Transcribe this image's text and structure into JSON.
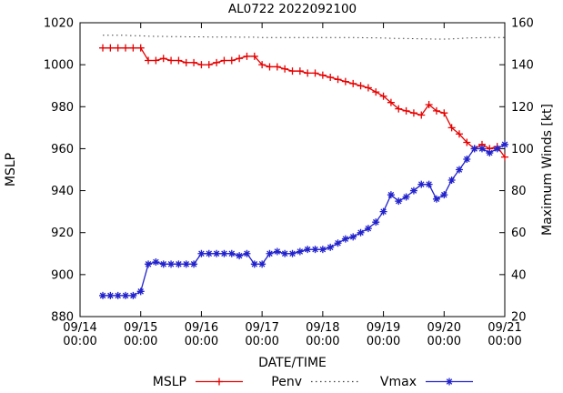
{
  "title": "AL0722 2022092100",
  "axes": {
    "left_label": "MSLP",
    "right_label": "Maximum Winds [kt]",
    "x_label": "DATE/TIME",
    "left_ticks": [
      880,
      900,
      920,
      940,
      960,
      980,
      1000,
      1020
    ],
    "right_ticks": [
      20,
      40,
      60,
      80,
      100,
      120,
      140,
      160
    ],
    "x_ticks": [
      {
        "hour": 0,
        "date": "09/14",
        "time": "00:00"
      },
      {
        "hour": 24,
        "date": "09/15",
        "time": "00:00"
      },
      {
        "hour": 48,
        "date": "09/16",
        "time": "00:00"
      },
      {
        "hour": 72,
        "date": "09/17",
        "time": "00:00"
      },
      {
        "hour": 96,
        "date": "09/18",
        "time": "00:00"
      },
      {
        "hour": 120,
        "date": "09/19",
        "time": "00:00"
      },
      {
        "hour": 144,
        "date": "09/20",
        "time": "00:00"
      },
      {
        "hour": 168,
        "date": "09/21",
        "time": "00:00"
      }
    ]
  },
  "legend": [
    {
      "label": "MSLP",
      "color": "#e60000",
      "marker": "plus",
      "dash": ""
    },
    {
      "label": "Penv",
      "color": "#404040",
      "marker": "none",
      "dash": "1.5,3.5"
    },
    {
      "label": "Vmax",
      "color": "#2222cc",
      "marker": "asterisk",
      "dash": ""
    }
  ],
  "chart_data": {
    "type": "line",
    "title": "AL0722 2022092100",
    "xlabel": "DATE/TIME",
    "ylabel_left": "MSLP",
    "ylabel_right": "Maximum Winds [kt]",
    "xlim_hours": [
      0,
      168
    ],
    "ylim_left": [
      880,
      1020
    ],
    "ylim_right": [
      20,
      160
    ],
    "x_axis_note": "hours after 09/14 00:00, ticks every 24h labeled 09/14 00:00 through 09/21 00:00",
    "grid": false,
    "legend_position": "below",
    "hours": [
      9,
      12,
      15,
      18,
      21,
      24,
      27,
      30,
      33,
      36,
      39,
      42,
      45,
      48,
      51,
      54,
      57,
      60,
      63,
      66,
      69,
      72,
      75,
      78,
      81,
      84,
      87,
      90,
      93,
      96,
      99,
      102,
      105,
      108,
      111,
      114,
      117,
      120,
      123,
      126,
      129,
      132,
      135,
      138,
      141,
      144,
      147,
      150,
      153,
      156,
      159,
      162,
      165,
      168
    ],
    "series": [
      {
        "name": "MSLP",
        "axis": "left",
        "color": "#e60000",
        "marker": "plus",
        "dash": "",
        "width": 1.3,
        "values": [
          1008,
          1008,
          1008,
          1008,
          1008,
          1008,
          1002,
          1002,
          1003,
          1002,
          1002,
          1001,
          1001,
          1000,
          1000,
          1001,
          1002,
          1002,
          1003,
          1004,
          1004,
          1000,
          999,
          999,
          998,
          997,
          997,
          996,
          996,
          995,
          994,
          993,
          992,
          991,
          990,
          989,
          987,
          985,
          982,
          979,
          978,
          977,
          976,
          981,
          978,
          977,
          970,
          967,
          963,
          960,
          962,
          960,
          961,
          956
        ]
      },
      {
        "name": "Penv",
        "axis": "left",
        "color": "#404040",
        "marker": "none",
        "dash": "1.5,3.5",
        "width": 1,
        "values": [
          1014,
          1014,
          1014,
          1014,
          1013.8,
          1013.8,
          1013.6,
          1013.5,
          1013.5,
          1013.4,
          1013.4,
          1013.3,
          1013.3,
          1013.3,
          1013.2,
          1013.2,
          1013.2,
          1013.2,
          1013.1,
          1013.1,
          1013.1,
          1013,
          1013,
          1013,
          1013,
          1013,
          1013,
          1013,
          1013,
          1013,
          1013,
          1013,
          1013,
          1013,
          1012.9,
          1012.8,
          1012.8,
          1012.7,
          1012.6,
          1012.5,
          1012.5,
          1012.4,
          1012.3,
          1012.3,
          1012.2,
          1012.2,
          1012.3,
          1012.5,
          1012.7,
          1012.8,
          1012.9,
          1013,
          1013,
          1013
        ]
      },
      {
        "name": "Vmax",
        "axis": "right",
        "color": "#2222cc",
        "marker": "asterisk",
        "dash": "",
        "width": 1.3,
        "values": [
          30,
          30,
          30,
          30,
          30,
          32,
          45,
          46,
          45,
          45,
          45,
          45,
          45,
          50,
          50,
          50,
          50,
          50,
          49,
          50,
          45,
          45,
          50,
          51,
          50,
          50,
          51,
          52,
          52,
          52,
          53,
          55,
          57,
          58,
          60,
          62,
          65,
          70,
          78,
          75,
          77,
          80,
          83,
          83,
          76,
          78,
          85,
          90,
          95,
          100,
          100,
          98,
          100,
          102
        ]
      }
    ]
  }
}
